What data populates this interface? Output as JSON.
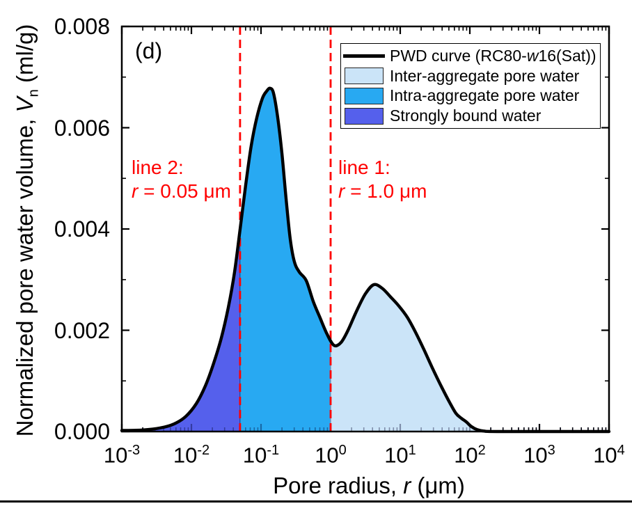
{
  "panel_label": "(d)",
  "axes": {
    "x": {
      "label": {
        "pre": "Pore radius, ",
        "var": "r",
        "post": " (μm)"
      },
      "scale": "log",
      "min_exp": -3,
      "max_exp": 4,
      "tick_mantissa": "10",
      "tick_exponents": [
        -3,
        -2,
        -1,
        0,
        1,
        2,
        3,
        4
      ],
      "minor_multiples": [
        2,
        3,
        4,
        5,
        6,
        7,
        8,
        9
      ]
    },
    "y": {
      "label": {
        "pre": "Normalized pore water volume, ",
        "var": "V",
        "sub": "n",
        "post": " (ml/g)"
      },
      "min": 0,
      "max": 0.008,
      "ticks": [
        {
          "v": 0.008,
          "label": "0.008"
        },
        {
          "v": 0.006,
          "label": "0.006"
        },
        {
          "v": 0.004,
          "label": "0.004"
        },
        {
          "v": 0.002,
          "label": "0.002"
        },
        {
          "v": 0.0,
          "label": "0.000"
        }
      ],
      "minor_values": [
        0.001,
        0.003,
        0.005,
        0.007
      ]
    }
  },
  "legend": {
    "border_color": "#000000",
    "background": "#ffffff",
    "items": [
      {
        "type": "line",
        "color": "#000000",
        "label": {
          "pre": "PWD curve (RC80-",
          "italic": "w",
          "post": "16(Sat))"
        }
      },
      {
        "type": "fill",
        "color": "#CBE4F8",
        "label": {
          "pre": "Inter-aggregate pore water",
          "italic": "",
          "post": ""
        }
      },
      {
        "type": "fill",
        "color": "#28A9F2",
        "label": {
          "pre": "Intra-aggregate pore water",
          "italic": "",
          "post": ""
        }
      },
      {
        "type": "fill",
        "color": "#5560EC",
        "label": {
          "pre": "Strongly bound water",
          "italic": "",
          "post": ""
        }
      }
    ]
  },
  "annotations": {
    "color": "#FF0000",
    "line2": {
      "title": "line 2:",
      "var": "r",
      "rest": " = 0.05 μm"
    },
    "line1": {
      "title": "line 1:",
      "var": "r",
      "rest": " = 1.0 μm"
    }
  },
  "chart_data": {
    "type": "area",
    "x_unit": "μm",
    "y_unit": "ml/g",
    "x_axis_label": "Pore radius, r (μm)",
    "y_axis_label": "Normalized pore water volume, Vn (ml/g)",
    "xlim_log10": [
      -3,
      4
    ],
    "ylim": [
      0,
      0.008
    ],
    "series": [
      {
        "name": "PWD curve (RC80-w16(Sat))",
        "color": "#000000",
        "line_width": 4.4,
        "points_log10r_v": [
          [
            -3.0,
            2e-05
          ],
          [
            -2.7,
            3e-05
          ],
          [
            -2.45,
            7e-05
          ],
          [
            -2.25,
            0.00015
          ],
          [
            -2.08,
            0.0003
          ],
          [
            -1.93,
            0.00055
          ],
          [
            -1.8,
            0.0009
          ],
          [
            -1.68,
            0.00135
          ],
          [
            -1.57,
            0.00185
          ],
          [
            -1.47,
            0.00245
          ],
          [
            -1.38,
            0.00315
          ],
          [
            -1.3,
            0.004
          ],
          [
            -1.22,
            0.00487
          ],
          [
            -1.14,
            0.00565
          ],
          [
            -1.06,
            0.0062
          ],
          [
            -0.98,
            0.00658
          ],
          [
            -0.92,
            0.00672
          ],
          [
            -0.87,
            0.00678
          ],
          [
            -0.82,
            0.00668
          ],
          [
            -0.76,
            0.0062
          ],
          [
            -0.7,
            0.0055
          ],
          [
            -0.64,
            0.0046
          ],
          [
            -0.58,
            0.0038
          ],
          [
            -0.52,
            0.00335
          ],
          [
            -0.45,
            0.00315
          ],
          [
            -0.35,
            0.00298
          ],
          [
            -0.25,
            0.00257
          ],
          [
            -0.15,
            0.00224
          ],
          [
            -0.05,
            0.00192
          ],
          [
            0.05,
            0.0017
          ],
          [
            0.15,
            0.00176
          ],
          [
            0.25,
            0.002
          ],
          [
            0.38,
            0.0024
          ],
          [
            0.5,
            0.00272
          ],
          [
            0.62,
            0.0029
          ],
          [
            0.74,
            0.00283
          ],
          [
            0.86,
            0.00266
          ],
          [
            0.98,
            0.00248
          ],
          [
            1.1,
            0.00226
          ],
          [
            1.22,
            0.00196
          ],
          [
            1.34,
            0.00162
          ],
          [
            1.46,
            0.00126
          ],
          [
            1.58,
            0.00092
          ],
          [
            1.7,
            0.0006
          ],
          [
            1.8,
            0.00036
          ],
          [
            1.88,
            0.00026
          ],
          [
            1.95,
            0.00019
          ],
          [
            2.02,
            0.0001
          ],
          [
            2.1,
            4e-05
          ],
          [
            2.2,
            1e-05
          ],
          [
            2.45,
            0.0
          ],
          [
            4.0,
            0.0
          ]
        ]
      }
    ],
    "regions": [
      {
        "name": "Strongly bound water",
        "range_log10_um": [
          -3,
          -1.30103
        ],
        "fill": "#5560EC",
        "edge": "rgba(25,25,110,0.6)"
      },
      {
        "name": "Intra-aggregate pore water",
        "range_log10_um": [
          -1.30103,
          0
        ],
        "fill": "#28A9F2",
        "edge": "rgba(10,70,140,0.55)"
      },
      {
        "name": "Inter-aggregate pore water",
        "range_log10_um": [
          0,
          4
        ],
        "fill": "#CBE4F8",
        "edge": "rgba(120,150,185,0.95)"
      }
    ],
    "vlines": [
      {
        "name": "line 2",
        "r_um": 0.05,
        "log_x": -1.30103,
        "color": "#FF0000",
        "dash": [
          12,
          7
        ],
        "width": 2.8
      },
      {
        "name": "line 1",
        "r_um": 1.0,
        "log_x": 0,
        "color": "#FF0000",
        "dash": [
          12,
          7
        ],
        "width": 2.8
      }
    ],
    "frame_color": "#000000",
    "legend_position": "top-right",
    "grid": false
  }
}
